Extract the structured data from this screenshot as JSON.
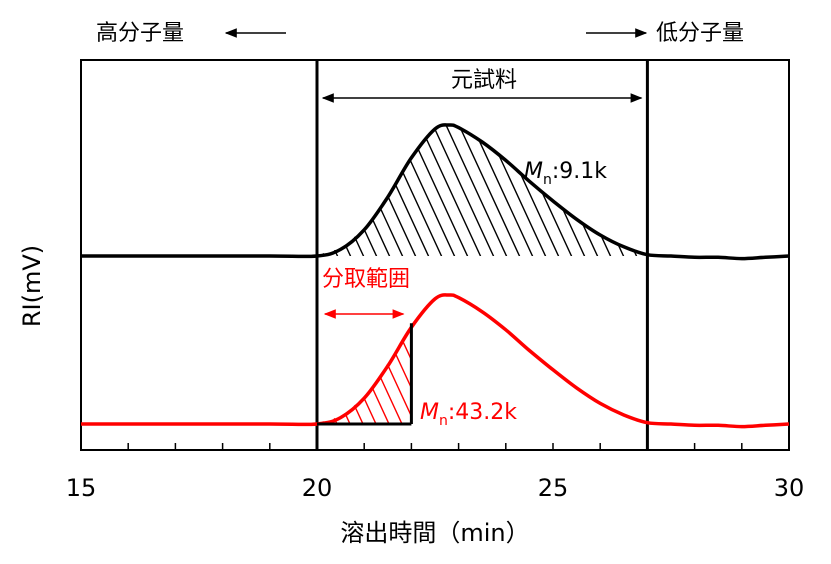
{
  "labels": {
    "high_mw": "高分子量",
    "low_mw": "低分子量",
    "original_sample": "元試料",
    "fraction_range": "分取範囲",
    "mn_symbol": "M",
    "mn_subscript": "n",
    "mn_black": ":9.1k",
    "mn_red": ":43.2k",
    "ylabel": "RI(mV)",
    "xlabel": "溶出時間（min）"
  },
  "colors": {
    "black": "#000000",
    "red": "#ff0000"
  },
  "chart_data": {
    "type": "line",
    "xlabel": "溶出時間（min）",
    "ylabel": "RI(mV)",
    "xlim": [
      15,
      30
    ],
    "xticks": [
      15,
      20,
      25,
      30
    ],
    "grid": false,
    "legend": "none",
    "series": [
      {
        "color": "#000000",
        "x": [
          15,
          17,
          19,
          20,
          20.5,
          21,
          21.5,
          22,
          22.5,
          22.8,
          23,
          23.5,
          24,
          24.5,
          25,
          25.5,
          26,
          26.5,
          27,
          27.5,
          28,
          28.5,
          29,
          29.5,
          30
        ],
        "y": [
          0.0,
          0.0,
          0.0,
          0.0,
          0.05,
          0.2,
          0.45,
          0.75,
          0.97,
          1.0,
          0.98,
          0.87,
          0.73,
          0.57,
          0.42,
          0.28,
          0.16,
          0.07,
          0.01,
          0.0,
          -0.01,
          -0.01,
          -0.02,
          -0.01,
          0.0
        ],
        "shaded_range": [
          20,
          27
        ],
        "annotation": ":9.1k"
      },
      {
        "color": "#ff0000",
        "x": [
          15,
          17,
          19,
          20,
          20.5,
          21,
          21.5,
          22,
          22.5,
          22.8,
          23,
          23.5,
          24,
          24.5,
          25,
          25.5,
          26,
          26.5,
          27,
          27.5,
          28,
          28.5,
          29,
          29.5,
          30
        ],
        "y": [
          0.0,
          0.0,
          0.0,
          0.0,
          0.05,
          0.2,
          0.45,
          0.75,
          0.97,
          1.0,
          0.98,
          0.87,
          0.73,
          0.57,
          0.42,
          0.28,
          0.16,
          0.07,
          0.01,
          0.0,
          -0.01,
          -0.01,
          -0.02,
          -0.01,
          0.0
        ],
        "shaded_range": [
          20,
          22
        ],
        "annotation": ":43.2k"
      }
    ],
    "vertical_lines": [
      20,
      27
    ],
    "ranges": [
      {
        "label": "元試料",
        "from": 20,
        "to": 27
      },
      {
        "label": "分取範囲",
        "from": 20,
        "to": 22
      }
    ]
  }
}
